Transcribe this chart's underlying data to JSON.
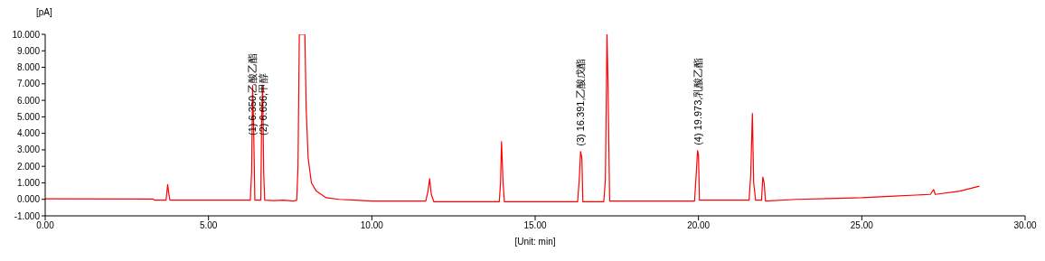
{
  "chart_data": {
    "type": "line",
    "xlabel": "[Unit: min]",
    "ylabel": "[pA]",
    "xlim": [
      0,
      30
    ],
    "xticks": [
      {
        "value": 0,
        "label": "0.00"
      },
      {
        "value": 5,
        "label": "5.00"
      },
      {
        "value": 10,
        "label": "10.00"
      },
      {
        "value": 15,
        "label": "15.00"
      },
      {
        "value": 20,
        "label": "20.00"
      },
      {
        "value": 25,
        "label": "25.00"
      },
      {
        "value": 30,
        "label": "30.00"
      }
    ],
    "ylim": [
      -1,
      10
    ],
    "yticks": [
      {
        "value": -1,
        "label": "-1.000"
      },
      {
        "value": 0,
        "label": "0.000"
      },
      {
        "value": 1,
        "label": "1.000"
      },
      {
        "value": 2,
        "label": "2.000"
      },
      {
        "value": 3,
        "label": "3.000"
      },
      {
        "value": 4,
        "label": "4.000"
      },
      {
        "value": 5,
        "label": "5.000"
      },
      {
        "value": 6,
        "label": "6.000"
      },
      {
        "value": 7,
        "label": "7.000"
      },
      {
        "value": 8,
        "label": "8.000"
      },
      {
        "value": 9,
        "label": "9.000"
      },
      {
        "value": 10,
        "label": "10.000"
      }
    ],
    "marker": "none",
    "line_style": "solid",
    "series": [
      {
        "color": "#ff0000",
        "x": [
          0,
          3.3,
          3.35,
          3.7,
          3.75,
          3.78,
          3.82,
          6.28,
          6.32,
          6.35,
          6.38,
          6.42,
          6.6,
          6.63,
          6.656,
          6.69,
          6.72,
          7.0,
          7.3,
          7.6,
          7.7,
          7.74,
          7.78,
          7.95,
          7.99,
          8.05,
          8.15,
          8.3,
          8.6,
          9.0,
          9.5,
          10,
          11.65,
          11.72,
          11.77,
          11.82,
          11.9,
          13.9,
          13.94,
          13.97,
          14.02,
          14.06,
          16.3,
          16.35,
          16.391,
          16.43,
          16.46,
          17.1,
          17.15,
          17.2,
          17.23,
          17.28,
          19.88,
          19.93,
          19.973,
          20.0,
          20.03,
          21.55,
          21.6,
          21.65,
          21.69,
          21.75,
          21.93,
          21.97,
          22.01,
          22.05,
          23,
          24,
          25,
          26,
          27.1,
          27.2,
          27.25,
          28,
          28.6
        ],
        "values": [
          0.03,
          0.02,
          -0.05,
          -0.05,
          0.9,
          0.4,
          -0.05,
          -0.05,
          1.7,
          6.9,
          4.5,
          -0.05,
          -0.05,
          5.4,
          6.9,
          1.6,
          -0.05,
          -0.08,
          -0.05,
          -0.1,
          -0.05,
          2,
          10,
          10,
          5.5,
          2.5,
          1.0,
          0.5,
          0.1,
          0,
          -0.05,
          -0.1,
          -0.1,
          0.5,
          1.25,
          0.3,
          -0.15,
          -0.15,
          1.0,
          3.5,
          0.9,
          -0.15,
          -0.15,
          1.2,
          2.9,
          2.5,
          -0.15,
          -0.15,
          1.2,
          10,
          7.0,
          -0.1,
          -0.1,
          1.5,
          2.95,
          2.7,
          -0.05,
          -0.05,
          1.5,
          5.2,
          1.0,
          -0.05,
          -0.05,
          1.35,
          1.0,
          -0.1,
          0.0,
          0.05,
          0.1,
          0.2,
          0.3,
          0.6,
          0.3,
          0.5,
          0.8
        ]
      }
    ],
    "annotations": [
      {
        "text": "(1) 6.350,乙酸乙酯",
        "x": 6.35,
        "y": 6.9
      },
      {
        "text": "(2) 6.656,甲醇",
        "x": 6.656,
        "y": 6.9
      },
      {
        "text": "(3) 16.391,乙酸戊酯",
        "x": 16.391,
        "y": 2.9
      },
      {
        "text": "(4) 19.973,乳酸乙酯",
        "x": 19.973,
        "y": 2.95
      }
    ]
  }
}
